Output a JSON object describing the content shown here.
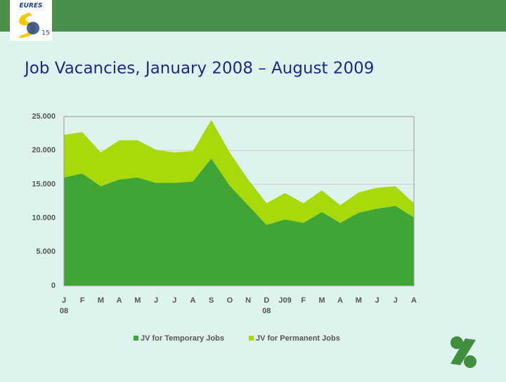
{
  "header": {
    "logo_text": "EURES",
    "logo_badge": "15"
  },
  "chart_data": {
    "type": "stacked_area",
    "title": "Job Vacancies, January 2008 – August 2009",
    "categories": [
      "J",
      "F",
      "M",
      "A",
      "M",
      "J",
      "J",
      "A",
      "S",
      "O",
      "N",
      "D",
      "J09",
      "F",
      "M",
      "A",
      "M",
      "J",
      "J",
      "A"
    ],
    "category_years": [
      "08",
      null,
      null,
      null,
      null,
      null,
      null,
      null,
      null,
      null,
      null,
      "08",
      null,
      null,
      null,
      null,
      null,
      null,
      null,
      null
    ],
    "series": [
      {
        "name": "JV for Temporary Jobs",
        "color": "#3fa535",
        "values": [
          16000,
          16600,
          14700,
          15700,
          16000,
          15200,
          15200,
          15400,
          18800,
          14800,
          11900,
          9000,
          9800,
          9300,
          10900,
          9300,
          10800,
          11400,
          11800,
          10100
        ]
      },
      {
        "name": "JV for Permanent Jobs",
        "color": "#a8d90a",
        "values": [
          6300,
          6100,
          5000,
          5800,
          5500,
          4900,
          4500,
          4500,
          5700,
          4900,
          3800,
          3200,
          3900,
          2900,
          3200,
          2600,
          3000,
          3100,
          2900,
          2100
        ]
      }
    ],
    "ylim": [
      0,
      25000
    ],
    "yticks": [
      0,
      {
        "value": 5000,
        "label": "5.000"
      },
      {
        "value": 10000,
        "label": "10.000"
      },
      {
        "value": 15000,
        "label": "15.000"
      },
      {
        "value": 20000,
        "label": "20.000"
      },
      {
        "value": 25000,
        "label": "25.000"
      }
    ],
    "grid": true
  }
}
